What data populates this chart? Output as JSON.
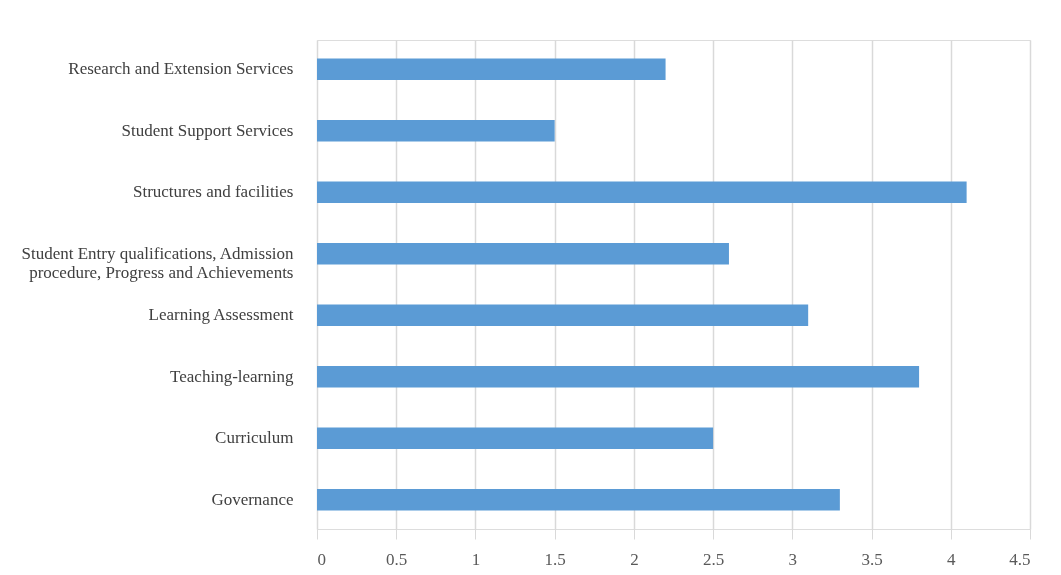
{
  "chart_data": {
    "type": "bar",
    "orientation": "horizontal",
    "categories": [
      "Research and Extension Services",
      "Student Support Services",
      "Structures and facilities",
      "Student Entry qualifications, Admission procedure, Progress and Achievements",
      "Learning Assessment",
      "Teaching-learning",
      "Curriculum",
      "Governance"
    ],
    "values": [
      2.2,
      1.5,
      4.1,
      2.6,
      3.1,
      3.8,
      2.5,
      3.3
    ],
    "color": "#5b9bd5",
    "xlim": [
      0,
      4.5
    ],
    "xticks": [
      0,
      0.5,
      1,
      1.5,
      2,
      2.5,
      3,
      3.5,
      4,
      4.5
    ],
    "grid": "x"
  }
}
